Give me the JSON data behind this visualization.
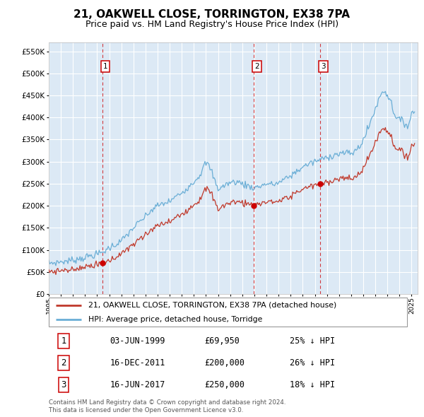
{
  "title": "21, OAKWELL CLOSE, TORRINGTON, EX38 7PA",
  "subtitle": "Price paid vs. HM Land Registry's House Price Index (HPI)",
  "title_fontsize": 11,
  "subtitle_fontsize": 9.5,
  "bg_color": "#dce9f5",
  "grid_color": "#ffffff",
  "hpi_color": "#6aaed6",
  "price_color": "#c0392b",
  "ylim": [
    0,
    570000
  ],
  "yticks": [
    0,
    50000,
    100000,
    150000,
    200000,
    250000,
    300000,
    350000,
    400000,
    450000,
    500000,
    550000
  ],
  "purchases": [
    {
      "label": "1",
      "date_num": 1999.42,
      "price": 69950,
      "note": "03-JUN-1999",
      "pct": "25% ↓ HPI"
    },
    {
      "label": "2",
      "date_num": 2011.96,
      "price": 200000,
      "note": "16-DEC-2011",
      "pct": "26% ↓ HPI"
    },
    {
      "label": "3",
      "date_num": 2017.46,
      "price": 250000,
      "note": "16-JUN-2017",
      "pct": "18% ↓ HPI"
    }
  ],
  "legend1": "21, OAKWELL CLOSE, TORRINGTON, EX38 7PA (detached house)",
  "legend2": "HPI: Average price, detached house, Torridge",
  "table_rows": [
    {
      "label": "1",
      "date": "03-JUN-1999",
      "price": "£69,950",
      "pct": "25% ↓ HPI"
    },
    {
      "label": "2",
      "date": "16-DEC-2011",
      "price": "£200,000",
      "pct": "26% ↓ HPI"
    },
    {
      "label": "3",
      "date": "16-JUN-2017",
      "price": "£250,000",
      "pct": "18% ↓ HPI"
    }
  ],
  "footer": "Contains HM Land Registry data © Crown copyright and database right 2024.\nThis data is licensed under the Open Government Licence v3.0.",
  "xmin": 1995.0,
  "xmax": 2025.5
}
